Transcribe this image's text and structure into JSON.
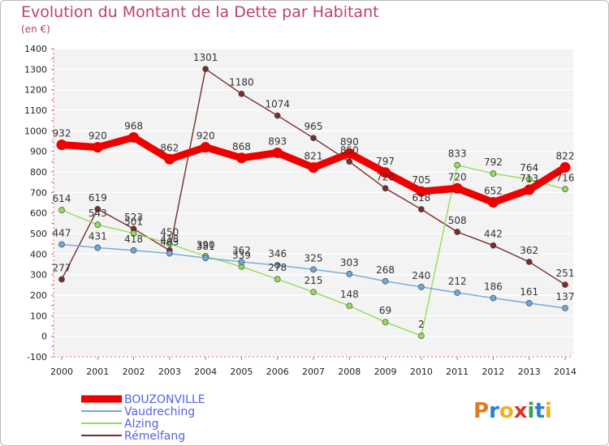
{
  "chart_data": {
    "type": "line",
    "title": "Evolution du Montant de la Dette par Habitant",
    "subtitle": "(en €)",
    "xlabel": "",
    "ylabel": "",
    "categories": [
      "2000",
      "2001",
      "2002",
      "2003",
      "2004",
      "2005",
      "2006",
      "2007",
      "2008",
      "2009",
      "2010",
      "2011",
      "2012",
      "2013",
      "2014"
    ],
    "yticks": [
      -100,
      0,
      100,
      200,
      300,
      400,
      500,
      600,
      700,
      800,
      900,
      1000,
      1100,
      1200,
      1300,
      1400
    ],
    "ylim": [
      -100,
      1400
    ],
    "grid": "horizontal",
    "legend_position": "bottom-left",
    "series": [
      {
        "name": "BOUZONVILLE",
        "color": "#ee0000",
        "values": [
          932,
          920,
          968,
          862,
          920,
          868,
          893,
          821,
          890,
          797,
          705,
          720,
          652,
          713,
          822
        ],
        "labels": [
          "932",
          "920",
          "968",
          "862",
          "920",
          "868",
          "893",
          "821",
          "890",
          "797",
          "705",
          "720",
          "652",
          "713",
          "822"
        ]
      },
      {
        "name": "Vaudreching",
        "color": "#6fa8dc",
        "values": [
          447,
          431,
          418,
          403,
          381,
          362,
          346,
          325,
          303,
          268,
          240,
          212,
          186,
          161,
          137
        ],
        "labels": [
          "447",
          "431",
          "418",
          "403",
          "381",
          "362",
          "346",
          "325",
          "303",
          "268",
          "240",
          "212",
          "186",
          "161",
          "137"
        ]
      },
      {
        "name": "Alzing",
        "color": "#93dc5c",
        "values": [
          614,
          543,
          501,
          450,
          390,
          339,
          278,
          215,
          148,
          69,
          2,
          833,
          792,
          764,
          716
        ],
        "labels": [
          "614",
          "543",
          "501",
          "450",
          "390",
          "339",
          "278",
          "215",
          "148",
          "69",
          "2",
          "833",
          "792",
          "764",
          "716"
        ]
      },
      {
        "name": "Rémelfang",
        "color": "#7b2c2c",
        "values": [
          277,
          619,
          523,
          418,
          1301,
          1180,
          1074,
          965,
          850,
          720,
          618,
          508,
          442,
          362,
          251
        ],
        "labels": [
          "277",
          "619",
          "523",
          "418",
          "1301",
          "1180",
          "1074",
          "965",
          "850",
          "720",
          "618",
          "508",
          "442",
          "362",
          "251"
        ]
      }
    ]
  },
  "brand": {
    "letters": [
      "P",
      "r",
      "o",
      "x",
      "i",
      "t",
      "i"
    ],
    "colors": [
      "#e07a1e",
      "#2a7fd0",
      "#f0b020",
      "#e0302a",
      "#3aa050",
      "#2a7fd0",
      "#f0b020"
    ]
  }
}
